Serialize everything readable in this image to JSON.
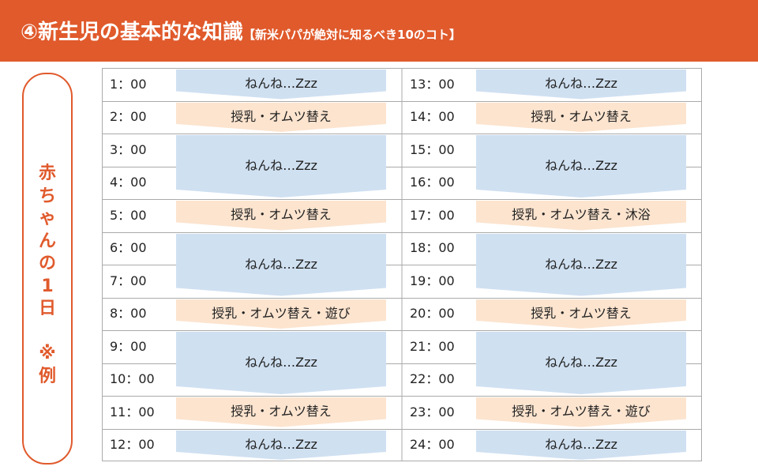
{
  "header": {
    "title_main": "④新生児の基本的な知識",
    "title_sub": "【新米パパが絶対に知るべき10のコト】"
  },
  "side_label": "赤\nち\nゃ\nん\nの\n1\n日\n \n※\n例",
  "colors": {
    "accent": "#e05a2c",
    "sleep": "#cfe0f1",
    "feed": "#fce4cf",
    "grid": "#aaaaaa"
  },
  "schedule": {
    "left": {
      "times": [
        "1：00",
        "2：00",
        "3：00",
        "4：00",
        "5：00",
        "6：00",
        "7：00",
        "8：00",
        "9：00",
        "10：00",
        "11：00",
        "12：00"
      ],
      "blocks": [
        {
          "kind": "sleep",
          "start": 1,
          "end": 1,
          "label": "ねんね…Zzz"
        },
        {
          "kind": "feed",
          "start": 2,
          "end": 2,
          "label": "授乳・オムツ替え"
        },
        {
          "kind": "sleep",
          "start": 3,
          "end": 4,
          "label": "ねんね…Zzz"
        },
        {
          "kind": "feed",
          "start": 5,
          "end": 5,
          "label": "授乳・オムツ替え"
        },
        {
          "kind": "sleep",
          "start": 6,
          "end": 7,
          "label": "ねんね…Zzz"
        },
        {
          "kind": "feed",
          "start": 8,
          "end": 8,
          "label": "授乳・オムツ替え・遊び"
        },
        {
          "kind": "sleep",
          "start": 9,
          "end": 10,
          "label": "ねんね…Zzz"
        },
        {
          "kind": "feed",
          "start": 11,
          "end": 11,
          "label": "授乳・オムツ替え"
        },
        {
          "kind": "sleep",
          "start": 12,
          "end": 12,
          "label": "ねんね…Zzz"
        }
      ]
    },
    "right": {
      "times": [
        "13：00",
        "14：00",
        "15：00",
        "16：00",
        "17：00",
        "18：00",
        "19：00",
        "20：00",
        "21：00",
        "22：00",
        "23：00",
        "24：00"
      ],
      "blocks": [
        {
          "kind": "sleep",
          "start": 1,
          "end": 1,
          "label": "ねんね…Zzz"
        },
        {
          "kind": "feed",
          "start": 2,
          "end": 2,
          "label": "授乳・オムツ替え"
        },
        {
          "kind": "sleep",
          "start": 3,
          "end": 4,
          "label": "ねんね…Zzz"
        },
        {
          "kind": "feed",
          "start": 5,
          "end": 5,
          "label": "授乳・オムツ替え・沐浴"
        },
        {
          "kind": "sleep",
          "start": 6,
          "end": 7,
          "label": "ねんね…Zzz"
        },
        {
          "kind": "feed",
          "start": 8,
          "end": 8,
          "label": "授乳・オムツ替え"
        },
        {
          "kind": "sleep",
          "start": 9,
          "end": 10,
          "label": "ねんね…Zzz"
        },
        {
          "kind": "feed",
          "start": 11,
          "end": 11,
          "label": "授乳・オムツ替え・遊び"
        },
        {
          "kind": "sleep",
          "start": 12,
          "end": 12,
          "label": "ねんね…Zzz"
        }
      ]
    }
  }
}
